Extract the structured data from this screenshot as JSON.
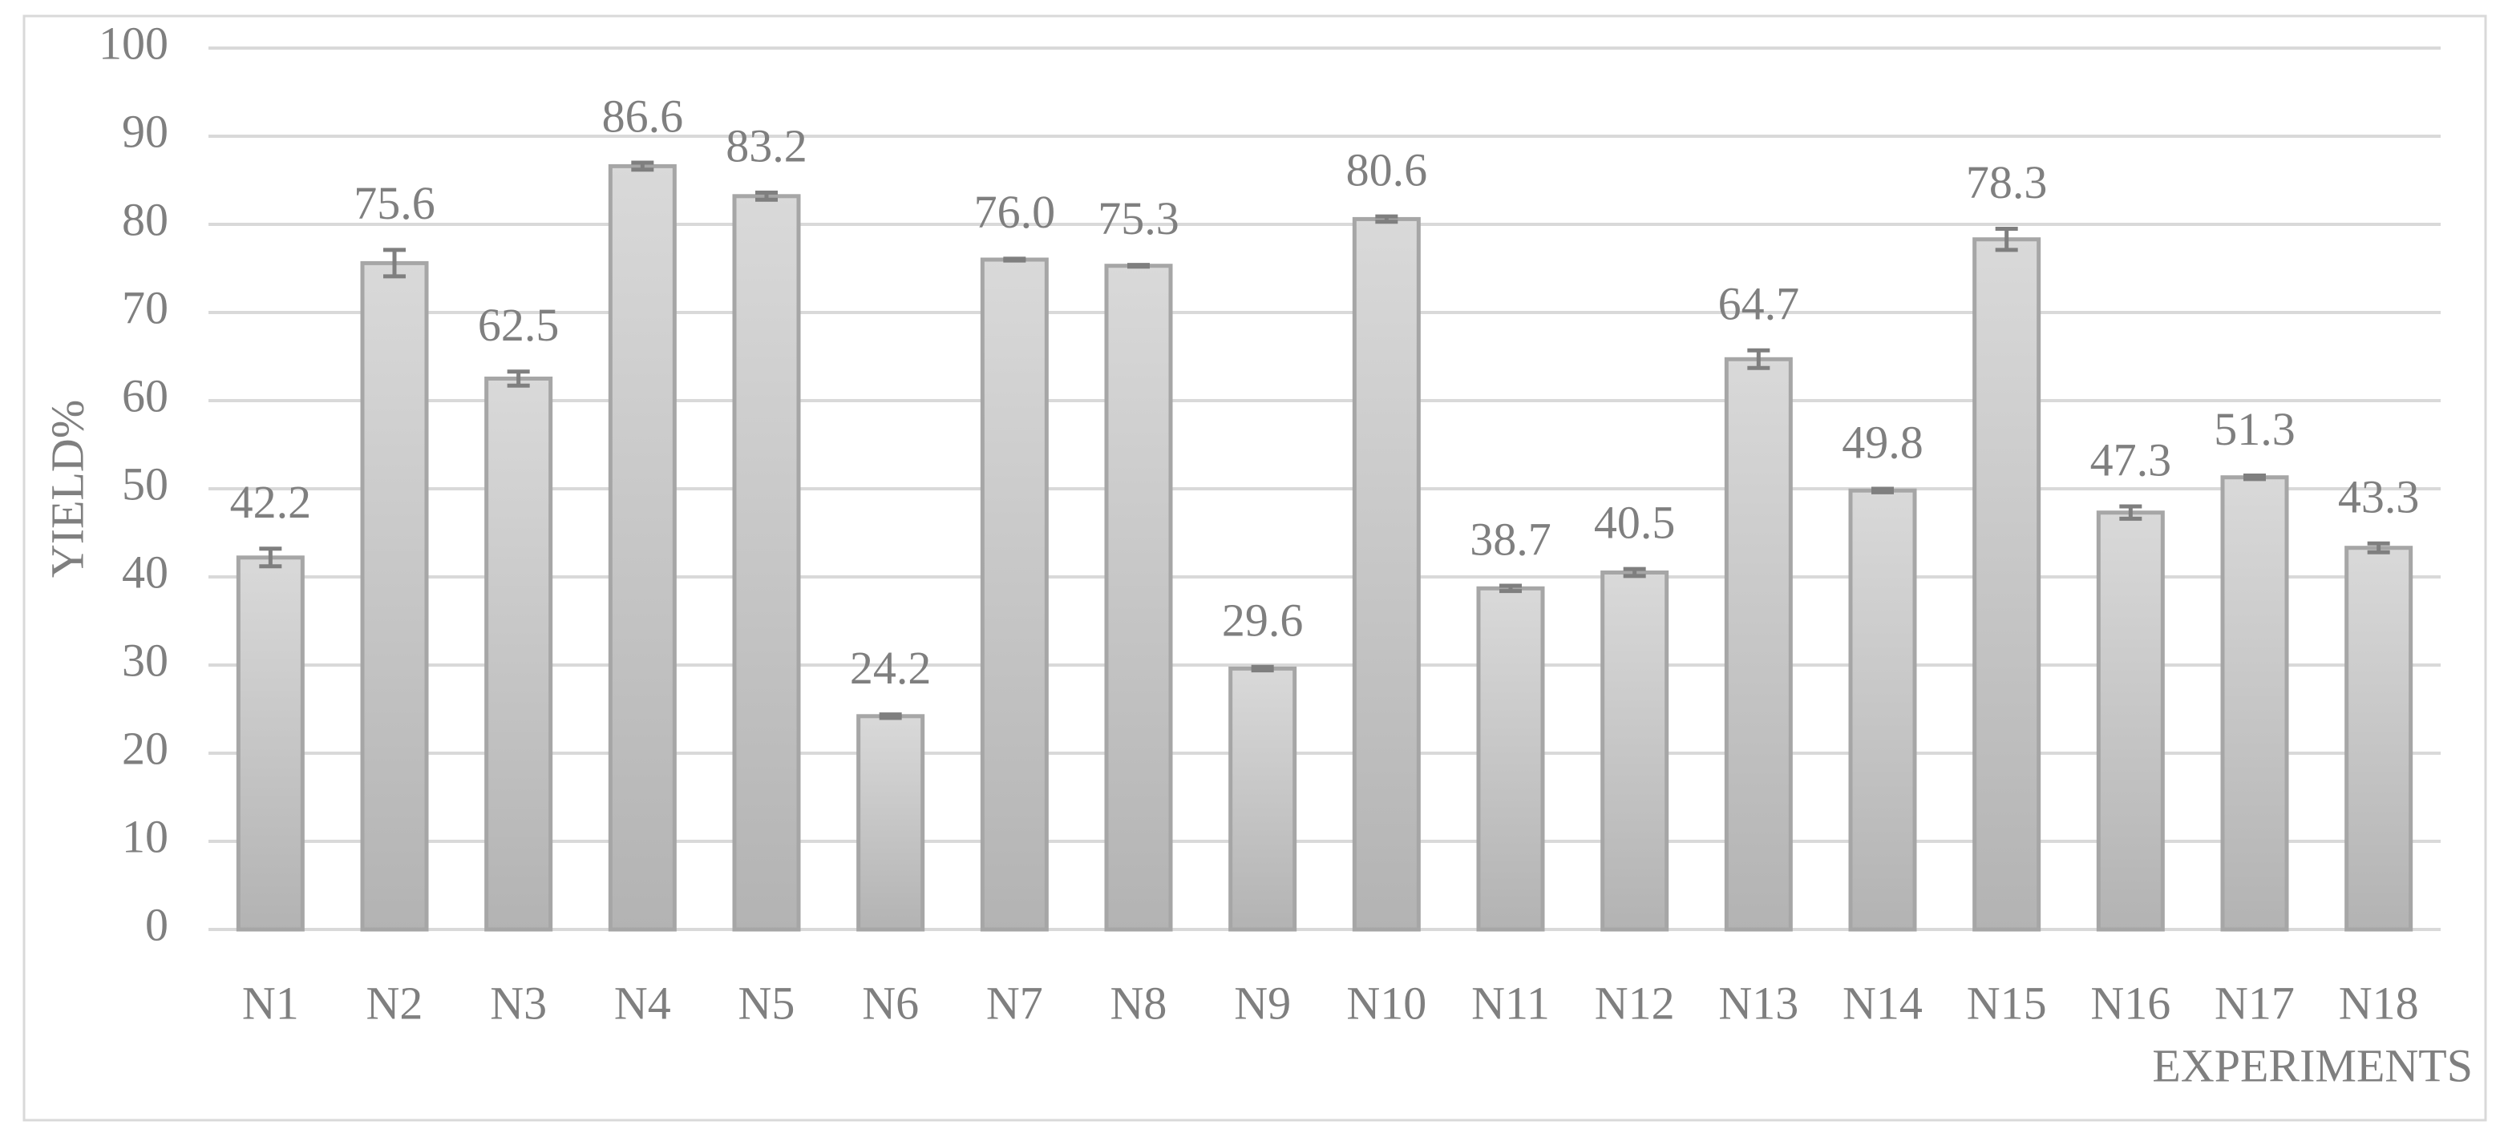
{
  "chart_data": {
    "type": "bar",
    "y_label": "YIELD%",
    "x_label": "EXPERIMENTS",
    "categories": [
      "N1",
      "N2",
      "N3",
      "N4",
      "N5",
      "N6",
      "N7",
      "N8",
      "N9",
      "N10",
      "N11",
      "N12",
      "N13",
      "N14",
      "N15",
      "N16",
      "N17",
      "N18"
    ],
    "values": [
      42.2,
      75.6,
      62.5,
      86.6,
      83.2,
      24.2,
      76.0,
      75.3,
      29.6,
      80.6,
      38.7,
      40.5,
      64.7,
      49.8,
      78.3,
      47.3,
      51.3,
      43.3
    ],
    "value_labels": [
      "42.2",
      "75.6",
      "62.5",
      "86.6",
      "83.2",
      "24.2",
      "76.0",
      "75.3",
      "29.6",
      "80.6",
      "38.7",
      "40.5",
      "64.7",
      "49.8",
      "78.3",
      "47.3",
      "51.3",
      "43.3"
    ],
    "errors": [
      1.0,
      1.5,
      0.8,
      0.4,
      0.4,
      0.2,
      0.1,
      0.1,
      0.2,
      0.3,
      0.3,
      0.4,
      1.0,
      0.2,
      1.2,
      0.7,
      0.2,
      0.5
    ],
    "color": "#a6a6a6",
    "ylim": [
      0,
      100
    ],
    "yticks": [
      0,
      10,
      20,
      30,
      40,
      50,
      60,
      70,
      80,
      90,
      100
    ],
    "grid": true
  }
}
